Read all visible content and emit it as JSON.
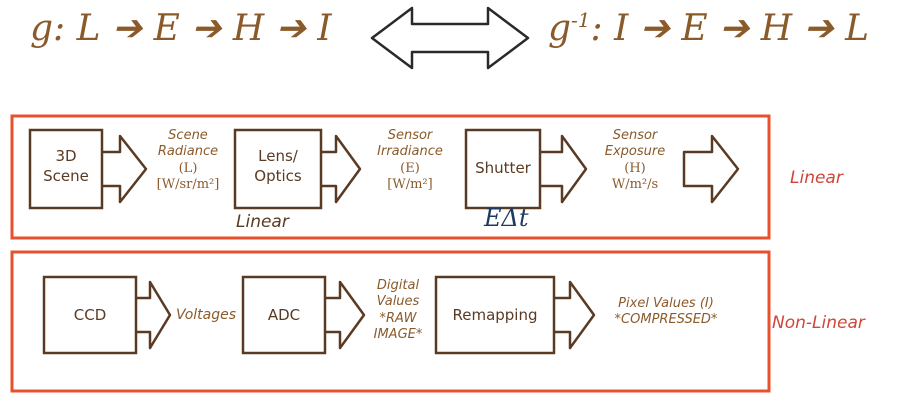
{
  "equations": {
    "forward": "g: L ➔ E ➔ H ➔ I",
    "inverse_prefix": "g",
    "inverse_sup": "-1",
    "inverse_rest": ": I ➔ E ➔ H ➔ L"
  },
  "linear_row": {
    "label": "Linear",
    "boxes": [
      {
        "line1": "3D",
        "line2": "Scene"
      },
      {
        "line1": "Lens/",
        "line2": "Optics"
      },
      {
        "line1": "Shutter",
        "line2": ""
      }
    ],
    "scene_radiance": {
      "l1": "Scene",
      "l2": "Radiance",
      "l3": "(L)",
      "l4": "[W/sr/m²]"
    },
    "sensor_irradiance": {
      "l1": "Sensor",
      "l2": "Irradiance",
      "l3": "(E)",
      "l4": "[W/m²]"
    },
    "sensor_exposure": {
      "l1": "Sensor",
      "l2": "Exposure",
      "l3": "(H)",
      "l4": "W/m²/s"
    },
    "lens_note": "Linear",
    "shutter_note": "EΔt"
  },
  "nonlinear_row": {
    "label": "Non-Linear",
    "boxes": [
      {
        "line1": "CCD"
      },
      {
        "line1": "ADC"
      },
      {
        "line1": "Remapping"
      }
    ],
    "voltages": "Voltages",
    "digital_values": {
      "l1": "Digital",
      "l2": "Values",
      "l3": "*RAW",
      "l4": "IMAGE*"
    },
    "pixel_values": {
      "l1": "Pixel Values (I)",
      "l2": "*COMPRESSED*"
    }
  },
  "colors": {
    "text_brown": "#8a5a2b",
    "box_stroke": "#5a3a22",
    "frame_red": "#e8502e",
    "label_red": "#d0463a",
    "delta_blue": "#1f3a5f"
  }
}
